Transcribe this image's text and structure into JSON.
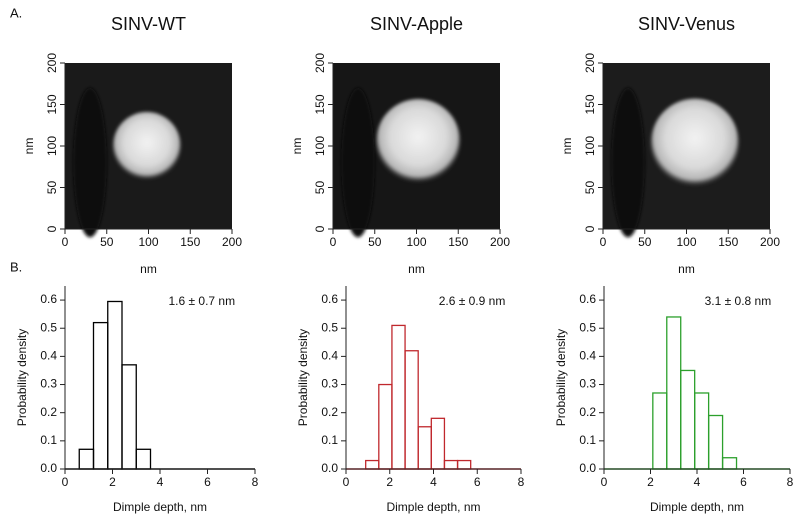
{
  "panel_labels": [
    "A.",
    "B."
  ],
  "chart_data": [
    {
      "type": "image",
      "title": "SINV-WT",
      "xlabel": "nm",
      "ylabel": "nm",
      "xlim": [
        0,
        200
      ],
      "ylim": [
        0,
        200
      ],
      "xticks": [
        0,
        50,
        100,
        150,
        200
      ],
      "yticks": [
        0,
        50,
        100,
        150,
        200
      ]
    },
    {
      "type": "image",
      "title": "SINV-Apple",
      "xlabel": "nm",
      "ylabel": "nm",
      "xlim": [
        0,
        200
      ],
      "ylim": [
        0,
        200
      ],
      "xticks": [
        0,
        50,
        100,
        150,
        200
      ],
      "yticks": [
        0,
        50,
        100,
        150,
        200
      ]
    },
    {
      "type": "image",
      "title": "SINV-Venus",
      "xlabel": "nm",
      "ylabel": "nm",
      "xlim": [
        0,
        200
      ],
      "ylim": [
        0,
        200
      ],
      "xticks": [
        0,
        50,
        100,
        150,
        200
      ],
      "yticks": [
        0,
        50,
        100,
        150,
        200
      ]
    },
    {
      "type": "histogram",
      "annotation": "1.6 ± 0.7 nm",
      "xlabel": "Dimple depth, nm",
      "ylabel": "Probability density",
      "color": "#000000",
      "bins": [
        0.6,
        1.2,
        1.8,
        2.4,
        3.0,
        3.6
      ],
      "counts": [
        0.07,
        0.52,
        0.595,
        0.37,
        0.07
      ],
      "xlim": [
        0,
        8
      ],
      "ylim": [
        0,
        0.65
      ],
      "xticks": [
        0,
        2,
        4,
        6,
        8
      ],
      "yticks": [
        {
          "value": 0,
          "label": "0.0"
        },
        0.1,
        0.2,
        0.3,
        0.4,
        0.5,
        0.6
      ]
    },
    {
      "type": "histogram",
      "annotation": "2.6 ± 0.9 nm",
      "xlabel": "Dimple depth, nm",
      "ylabel": "Probability density",
      "color": "#c0282d",
      "bins": [
        0.9,
        1.5,
        2.1,
        2.7,
        3.3,
        3.9,
        4.5,
        5.1,
        5.7
      ],
      "counts": [
        0.03,
        0.3,
        0.51,
        0.42,
        0.15,
        0.18,
        0.03,
        0.03
      ],
      "xlim": [
        0,
        8
      ],
      "ylim": [
        0,
        0.65
      ],
      "xticks": [
        0,
        2,
        4,
        6,
        8
      ],
      "yticks": [
        {
          "value": 0,
          "label": "0.0"
        },
        0.1,
        0.2,
        0.3,
        0.4,
        0.5,
        0.6
      ]
    },
    {
      "type": "histogram",
      "annotation": "3.1 ± 0.8 nm",
      "xlabel": "Dimple depth, nm",
      "ylabel": "Probability density",
      "color": "#2ca02c",
      "bins": [
        2.1,
        2.7,
        3.3,
        3.9,
        4.5,
        5.1,
        5.7
      ],
      "counts": [
        0.27,
        0.54,
        0.35,
        0.27,
        0.19,
        0.04
      ],
      "xlim": [
        0,
        8
      ],
      "ylim": [
        0,
        0.65
      ],
      "xticks": [
        0,
        2,
        4,
        6,
        8
      ],
      "yticks": [
        {
          "value": 0,
          "label": "0.0"
        },
        0.1,
        0.2,
        0.3,
        0.4,
        0.5,
        0.6
      ]
    }
  ]
}
